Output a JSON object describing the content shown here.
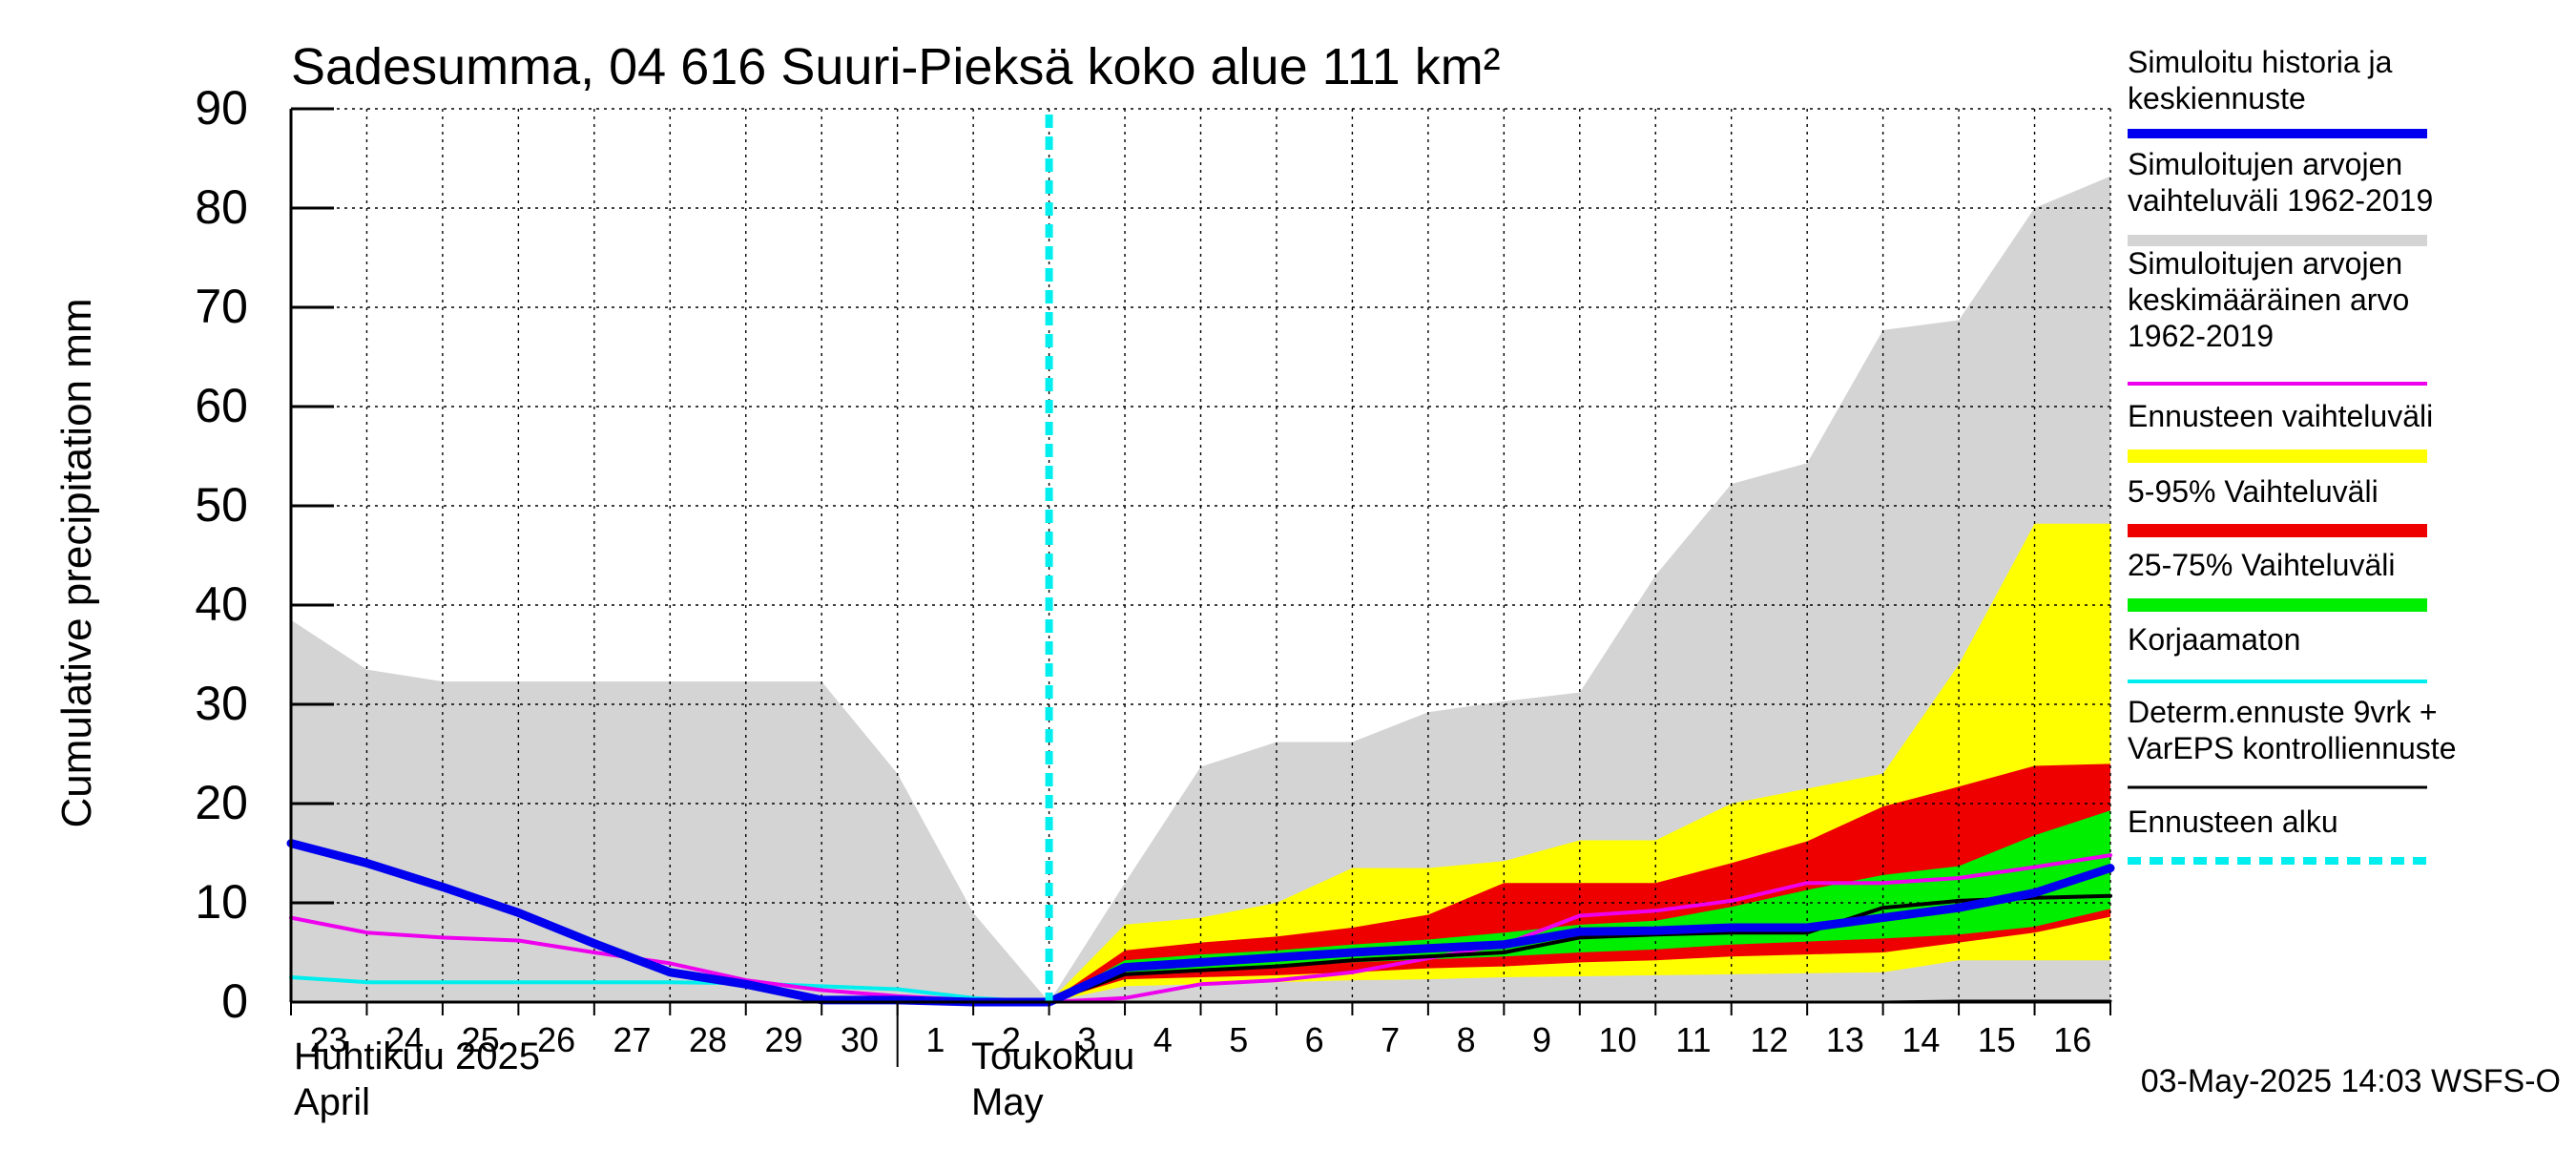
{
  "chart_data": {
    "type": "area",
    "title": "Sadesumma, 04 616 Suuri-Pieksä koko alue 111 km²",
    "ylabel": "Cumulative precipitation   mm",
    "ylim": [
      0,
      90
    ],
    "yticks": [
      0,
      10,
      20,
      30,
      40,
      50,
      60,
      70,
      80,
      90
    ],
    "grid": true,
    "legend_position": "right",
    "x_start": "2025-04-23",
    "x_end": "2025-05-17",
    "x_tick_labels": [
      "23",
      "24",
      "25",
      "26",
      "27",
      "28",
      "29",
      "30",
      "1",
      "2",
      "3",
      "4",
      "5",
      "6",
      "7",
      "8",
      "9",
      "10",
      "11",
      "12",
      "13",
      "14",
      "15",
      "16"
    ],
    "month_labels": {
      "april_fi": "Huhtikuu  2025",
      "april_en": "April",
      "may_fi": "Toukokuu",
      "may_en": "May"
    },
    "forecast_start": "2025-05-03",
    "timestamp": "03-May-2025 14:03 WSFS-O",
    "colors": {
      "history": "#0000ee",
      "range_1962_2019": "#d4d4d4",
      "mean_1962_2019": "#ee00ee",
      "forecast_range": "#ffff00",
      "range_5_95": "#ee0000",
      "range_25_75": "#00ee00",
      "uncorrected": "#00eeee",
      "deterministic": "#000000",
      "forecast_start": "#00eeee"
    },
    "legend": [
      {
        "key": "history",
        "label": "Simuloitu historia ja keskiennuste",
        "lines": [
          "Simuloitu historia ja",
          "keskiennuste"
        ]
      },
      {
        "key": "range_1962_2019",
        "label": "Simuloitujen arvojen vaihteluväli 1962-2019",
        "lines": [
          "Simuloitujen arvojen",
          "vaihteluväli 1962-2019"
        ]
      },
      {
        "key": "mean_1962_2019",
        "label": "Simuloitujen arvojen keskimääräinen arvo 1962-2019",
        "lines": [
          "Simuloitujen arvojen",
          "keskimääräinen arvo",
          "   1962-2019"
        ]
      },
      {
        "key": "forecast_range",
        "label": "Ennusteen vaihteluväli",
        "lines": [
          "Ennusteen vaihteluväli"
        ]
      },
      {
        "key": "range_5_95",
        "label": "5-95% Vaihteluväli",
        "lines": [
          "5-95% Vaihteluväli"
        ]
      },
      {
        "key": "range_25_75",
        "label": "25-75% Vaihteluväli",
        "lines": [
          "25-75% Vaihteluväli"
        ]
      },
      {
        "key": "uncorrected",
        "label": "Korjaamaton",
        "lines": [
          "Korjaamaton"
        ]
      },
      {
        "key": "deterministic",
        "label": "Determ.ennuste 9vrk + VarEPS kontrolliennuste",
        "lines": [
          "Determ.ennuste 9vrk +",
          "VarEPS kontrolliennuste"
        ]
      },
      {
        "key": "forecast_start",
        "label": "Ennusteen alku",
        "lines": [
          "Ennusteen alku"
        ]
      }
    ],
    "series": {
      "range_1962_2019": {
        "x": [
          "2025-04-23",
          "2025-04-24",
          "2025-04-25",
          "2025-04-26",
          "2025-04-27",
          "2025-04-28",
          "2025-04-29",
          "2025-04-30",
          "2025-05-01",
          "2025-05-02",
          "2025-05-03",
          "2025-05-04",
          "2025-05-05",
          "2025-05-06",
          "2025-05-07",
          "2025-05-08",
          "2025-05-09",
          "2025-05-10",
          "2025-05-11",
          "2025-05-12",
          "2025-05-13",
          "2025-05-14",
          "2025-05-15",
          "2025-05-16",
          "2025-05-17"
        ],
        "upper": [
          38.5,
          33.5,
          32.3,
          32.3,
          32.3,
          32.3,
          32.3,
          32.3,
          23.0,
          9.0,
          0.0,
          12.0,
          23.7,
          26.2,
          26.2,
          29.2,
          30.3,
          31.2,
          43.0,
          52.2,
          54.3,
          67.7,
          68.7,
          80.0,
          83.2
        ],
        "lower": [
          0,
          0,
          0,
          0,
          0,
          0,
          0,
          0,
          0,
          0,
          0,
          0,
          0,
          0,
          0,
          0,
          0,
          0,
          0,
          0,
          0,
          0,
          0,
          0,
          0
        ]
      },
      "forecast_range": {
        "x": [
          "2025-05-03",
          "2025-05-04",
          "2025-05-05",
          "2025-05-06",
          "2025-05-07",
          "2025-05-08",
          "2025-05-09",
          "2025-05-10",
          "2025-05-11",
          "2025-05-12",
          "2025-05-13",
          "2025-05-14",
          "2025-05-15",
          "2025-05-16",
          "2025-05-17"
        ],
        "upper": [
          0.0,
          7.8,
          8.5,
          10.0,
          13.5,
          13.5,
          14.2,
          16.3,
          16.3,
          20.0,
          21.5,
          23.0,
          34.0,
          48.2,
          48.2
        ],
        "lower": [
          0.0,
          1.6,
          1.8,
          2.0,
          2.2,
          2.3,
          2.5,
          2.6,
          2.7,
          2.8,
          2.9,
          3.0,
          4.2,
          4.2,
          4.2
        ]
      },
      "range_5_95": {
        "x": [
          "2025-05-03",
          "2025-05-04",
          "2025-05-05",
          "2025-05-06",
          "2025-05-07",
          "2025-05-08",
          "2025-05-09",
          "2025-05-10",
          "2025-05-11",
          "2025-05-12",
          "2025-05-13",
          "2025-05-14",
          "2025-05-15",
          "2025-05-16",
          "2025-05-17"
        ],
        "upper": [
          0.0,
          5.2,
          6.0,
          6.6,
          7.5,
          8.8,
          12.0,
          12.0,
          12.0,
          14.0,
          16.2,
          19.7,
          21.7,
          23.8,
          24.0
        ],
        "lower": [
          0.0,
          2.3,
          2.5,
          2.7,
          3.0,
          3.4,
          3.6,
          4.0,
          4.2,
          4.6,
          4.8,
          5.0,
          6.0,
          7.0,
          8.6
        ]
      },
      "range_25_75": {
        "x": [
          "2025-05-03",
          "2025-05-04",
          "2025-05-05",
          "2025-05-06",
          "2025-05-07",
          "2025-05-08",
          "2025-05-09",
          "2025-05-10",
          "2025-05-11",
          "2025-05-12",
          "2025-05-13",
          "2025-05-14",
          "2025-05-15",
          "2025-05-16",
          "2025-05-17"
        ],
        "upper": [
          0.0,
          4.2,
          4.8,
          5.2,
          5.8,
          6.3,
          7.0,
          7.8,
          8.2,
          9.6,
          11.3,
          12.8,
          13.7,
          16.8,
          19.3
        ],
        "lower": [
          0.0,
          3.0,
          3.3,
          3.6,
          4.0,
          4.3,
          4.6,
          5.0,
          5.3,
          5.8,
          6.1,
          6.4,
          6.8,
          7.6,
          9.4
        ]
      },
      "history": {
        "x": [
          "2025-04-23",
          "2025-04-24",
          "2025-04-25",
          "2025-04-26",
          "2025-04-27",
          "2025-04-28",
          "2025-04-29",
          "2025-04-30",
          "2025-05-01",
          "2025-05-02",
          "2025-05-03",
          "2025-05-04",
          "2025-05-05",
          "2025-05-06",
          "2025-05-07",
          "2025-05-08",
          "2025-05-09",
          "2025-05-10",
          "2025-05-11",
          "2025-05-12",
          "2025-05-13",
          "2025-05-14",
          "2025-05-15",
          "2025-05-16",
          "2025-05-17"
        ],
        "y": [
          16.0,
          14.0,
          11.6,
          9.0,
          5.9,
          3.0,
          1.8,
          0.2,
          0.2,
          0.0,
          0.0,
          3.5,
          4.0,
          4.5,
          5.0,
          5.4,
          5.8,
          7.1,
          7.2,
          7.5,
          7.5,
          8.5,
          9.5,
          11.0,
          13.5
        ]
      },
      "mean_1962_2019": {
        "x": [
          "2025-04-23",
          "2025-04-24",
          "2025-04-25",
          "2025-04-26",
          "2025-04-27",
          "2025-04-28",
          "2025-04-29",
          "2025-04-30",
          "2025-05-01",
          "2025-05-02",
          "2025-05-03",
          "2025-05-04",
          "2025-05-05",
          "2025-05-06",
          "2025-05-07",
          "2025-05-08",
          "2025-05-09",
          "2025-05-10",
          "2025-05-11",
          "2025-05-12",
          "2025-05-13",
          "2025-05-14",
          "2025-05-15",
          "2025-05-16",
          "2025-05-17"
        ],
        "y": [
          8.5,
          7.0,
          6.5,
          6.2,
          5.0,
          3.9,
          2.2,
          1.2,
          0.6,
          0.2,
          0.0,
          0.4,
          1.8,
          2.2,
          3.0,
          4.4,
          5.8,
          8.7,
          9.2,
          10.2,
          12.0,
          12.0,
          12.5,
          13.6,
          14.8
        ]
      },
      "uncorrected": {
        "x": [
          "2025-04-23",
          "2025-04-24",
          "2025-04-25",
          "2025-04-26",
          "2025-04-27",
          "2025-04-28",
          "2025-04-29",
          "2025-04-30",
          "2025-05-01",
          "2025-05-02",
          "2025-05-03"
        ],
        "y": [
          2.5,
          2.0,
          2.0,
          2.0,
          2.0,
          2.0,
          1.9,
          1.6,
          1.3,
          0.4,
          0.0
        ]
      },
      "deterministic": {
        "x": [
          "2025-05-03",
          "2025-05-04",
          "2025-05-05",
          "2025-05-06",
          "2025-05-07",
          "2025-05-08",
          "2025-05-09",
          "2025-05-10",
          "2025-05-11",
          "2025-05-12",
          "2025-05-13",
          "2025-05-14",
          "2025-05-15",
          "2025-05-16",
          "2025-05-17"
        ],
        "y": [
          0.0,
          2.8,
          3.2,
          3.6,
          4.2,
          4.6,
          5.0,
          6.5,
          6.8,
          7.0,
          7.0,
          9.5,
          10.2,
          10.5,
          10.7
        ]
      },
      "control_lower": {
        "x": [
          "2025-05-14",
          "2025-05-15",
          "2025-05-16",
          "2025-05-17"
        ],
        "y": [
          0.0,
          0.1,
          0.1,
          0.1
        ]
      }
    }
  }
}
